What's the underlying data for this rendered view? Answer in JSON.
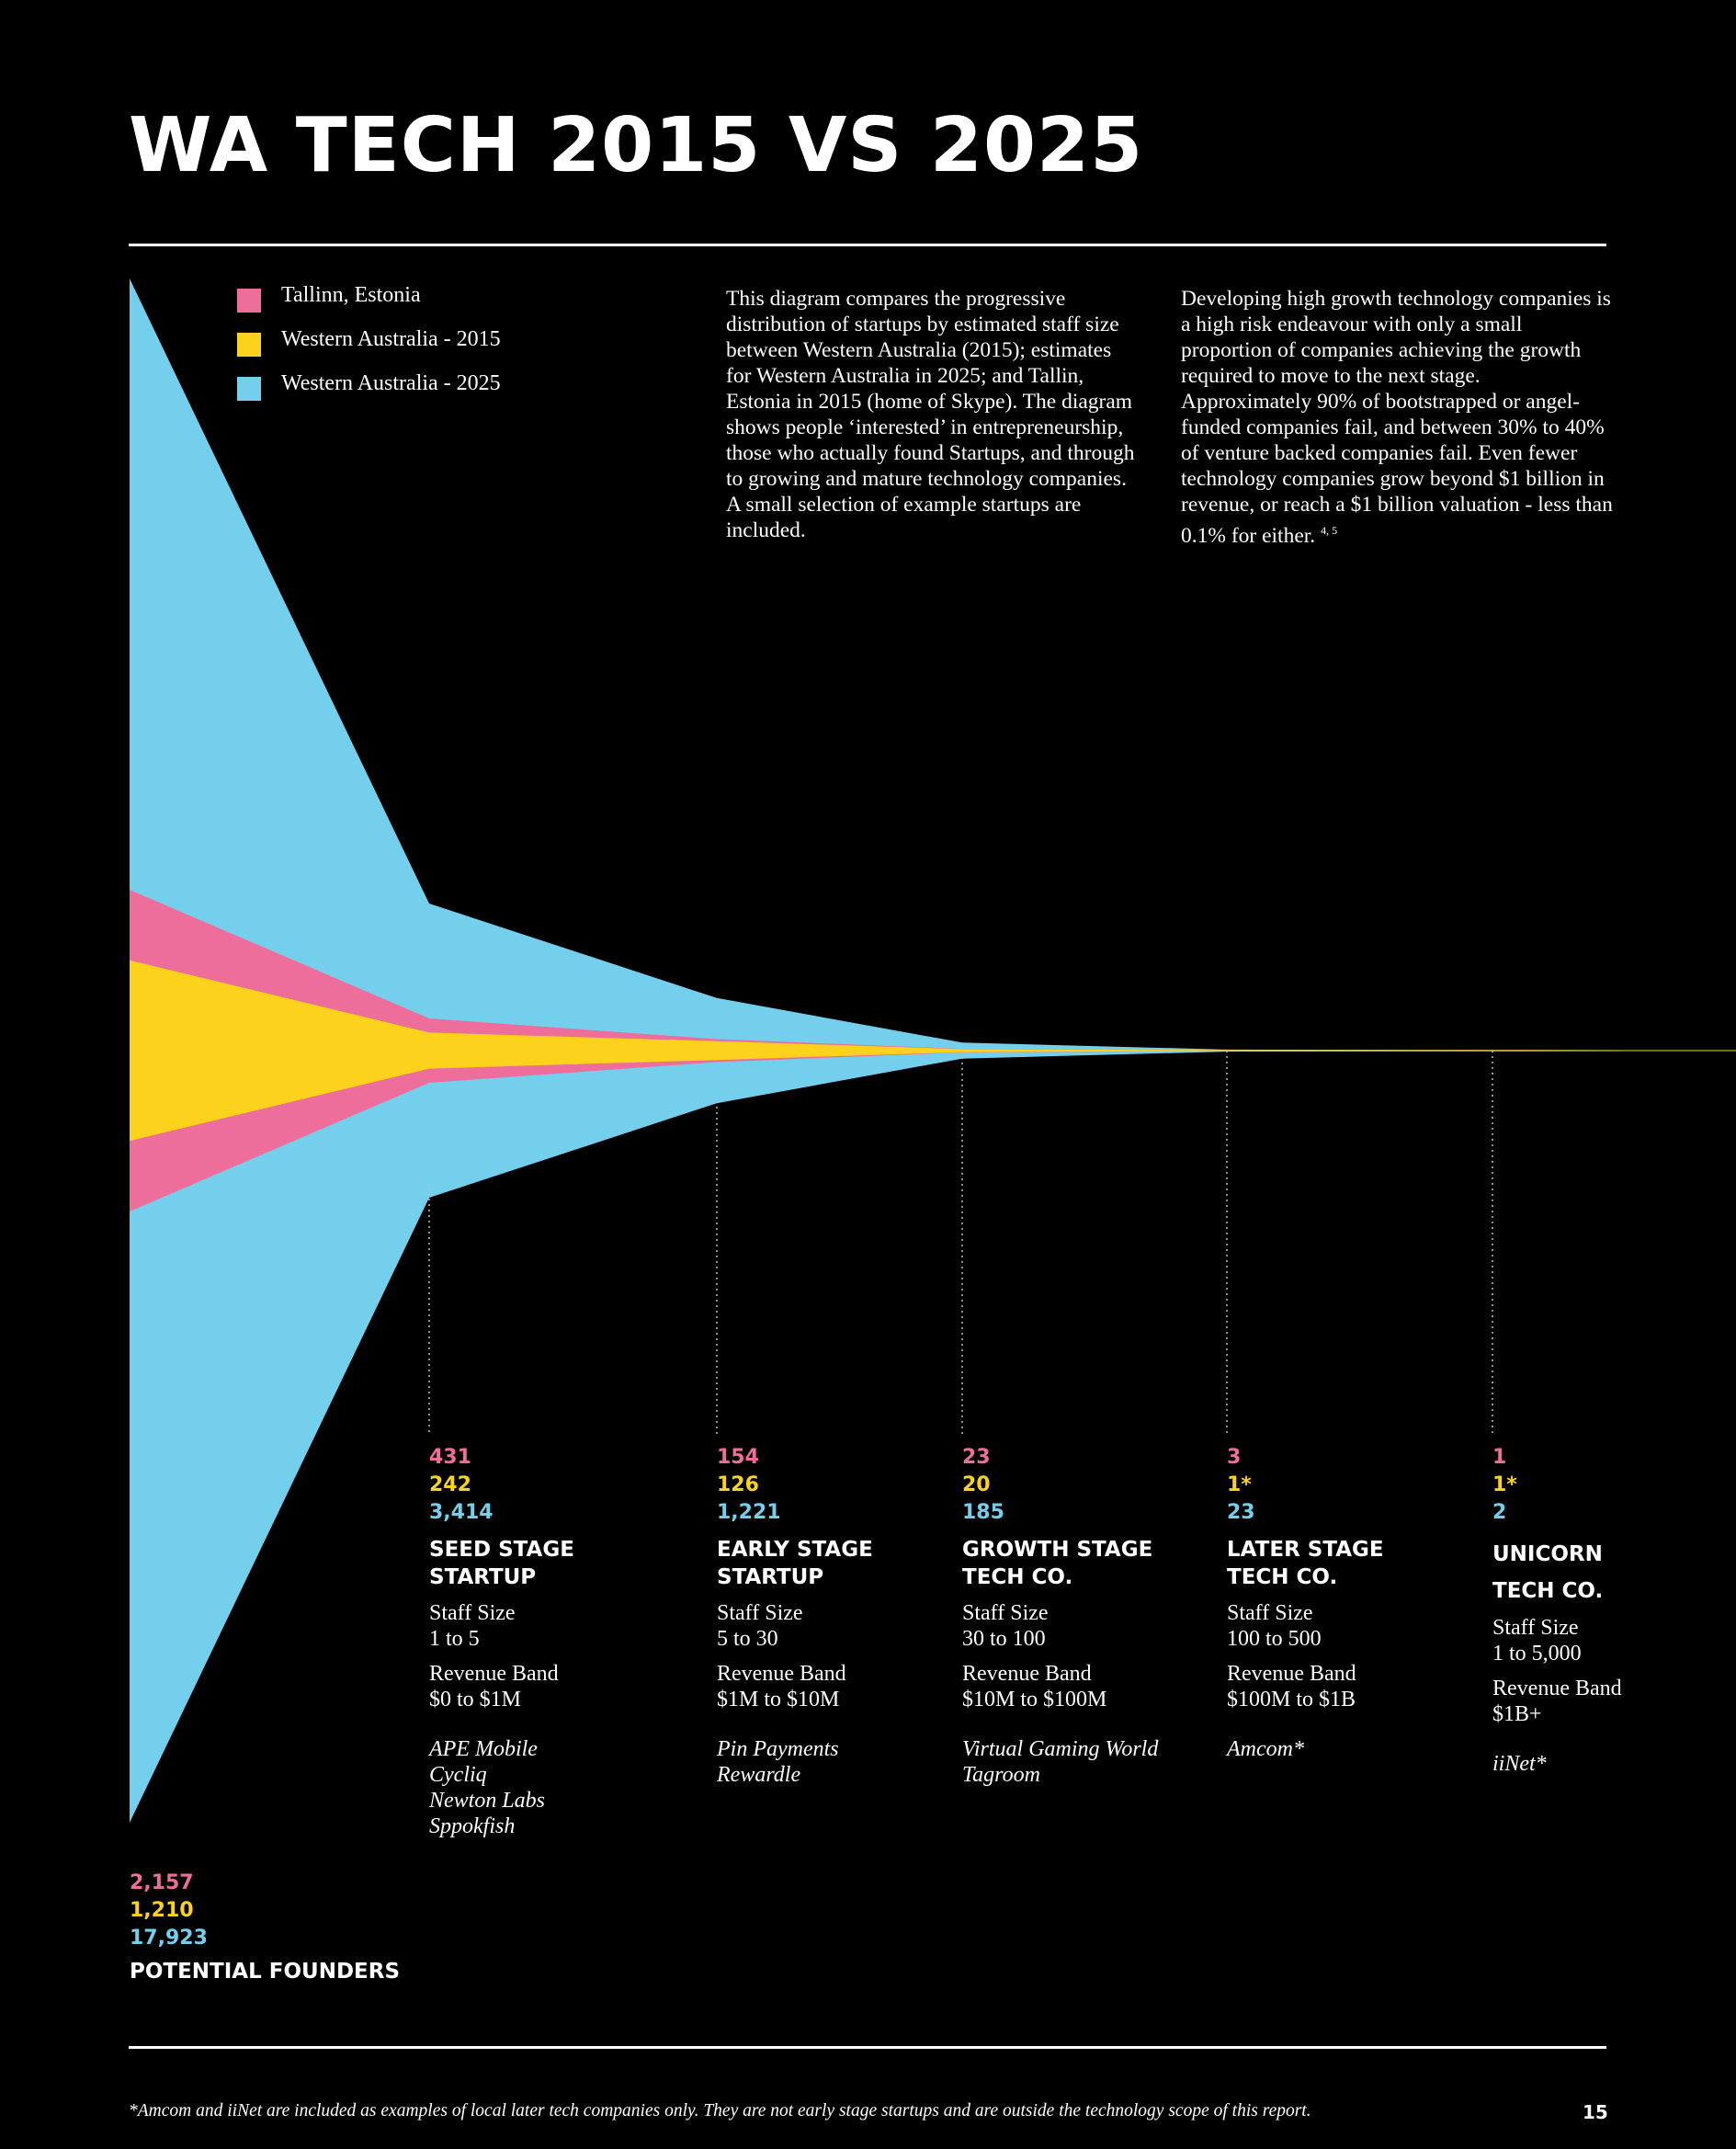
{
  "title": "WA TECH 2015 VS 2025",
  "legend": [
    {
      "label": "Tallinn, Estonia",
      "color": "#ee6e9b"
    },
    {
      "label": "Western Australia - 2015",
      "color": "#fdd21c"
    },
    {
      "label": "Western Australia - 2025",
      "color": "#74cfec"
    }
  ],
  "intro": {
    "col1": "This diagram compares the progressive distribution of startups by estimated staff size between Western Australia (2015); estimates for Western Australia in 2025; and Tallin, Estonia in 2015 (home of Skype). The diagram shows people ‘interested’ in entrepreneurship, those who actually found Startups, and through to growing and mature technology companies. A small selection of example startups are included.",
    "col2": "Developing high growth technology companies is a high risk endeavour with only a small proportion of companies achieving the growth required to move to the next stage. Approximately 90% of bootstrapped or angel-funded companies fail, and between 30% to 40% of venture backed companies fail. Even fewer technology companies grow beyond $1 billion in revenue, or reach a $1 billion valuation - less than 0.1% for either.",
    "col2_ref": "4, 5"
  },
  "stages": [
    {
      "title_lines": [
        "POTENTIAL FOUNDERS"
      ],
      "tallinn": "2,157",
      "wa2015": "1,210",
      "wa2025": "17,923"
    },
    {
      "title_lines": [
        "SEED STAGE",
        "STARTUP"
      ],
      "tallinn": "431",
      "wa2015": "242",
      "wa2025": "3,414",
      "staff_label": "Staff Size",
      "staff": "1 to 5",
      "revenue_label": "Revenue Band",
      "revenue": "$0 to $1M",
      "examples": [
        "APE Mobile",
        "Cycliq",
        "Newton Labs",
        "Sppokfish"
      ]
    },
    {
      "title_lines": [
        "EARLY STAGE",
        "STARTUP"
      ],
      "tallinn": "154",
      "wa2015": "126",
      "wa2025": "1,221",
      "staff_label": "Staff Size",
      "staff": "5 to 30",
      "revenue_label": "Revenue Band",
      "revenue": "$1M to $10M",
      "examples": [
        "Pin Payments",
        "Rewardle"
      ]
    },
    {
      "title_lines": [
        "GROWTH STAGE",
        "TECH CO."
      ],
      "tallinn": "23",
      "wa2015": "20",
      "wa2025": "185",
      "staff_label": "Staff Size",
      "staff": "30 to 100",
      "revenue_label": "Revenue Band",
      "revenue": "$10M to $100M",
      "examples": [
        "Virtual Gaming World",
        "Tagroom"
      ]
    },
    {
      "title_lines": [
        "LATER STAGE",
        "TECH CO."
      ],
      "tallinn": "3",
      "wa2015": "1*",
      "wa2025": "23",
      "staff_label": "Staff Size",
      "staff": "100 to 500",
      "revenue_label": "Revenue Band",
      "revenue": "$100M to $1B",
      "examples": [
        "Amcom*"
      ]
    },
    {
      "title_lines": [
        "UNICORN",
        "TECH CO."
      ],
      "tallinn": "1",
      "wa2015": "1*",
      "wa2025": "2",
      "staff_label": "Staff Size",
      "staff": "1 to 5,000",
      "revenue_label": "Revenue Band",
      "revenue": "$1B+",
      "examples": [
        "iiNet*"
      ]
    }
  ],
  "chart_data": {
    "type": "area",
    "categories": [
      "POTENTIAL FOUNDERS",
      "SEED STAGE STARTUP",
      "EARLY STAGE STARTUP",
      "GROWTH STAGE TECH CO.",
      "LATER STAGE TECH CO.",
      "UNICORN TECH CO."
    ],
    "series": [
      {
        "name": "Tallinn, Estonia",
        "values": [
          2157,
          431,
          154,
          23,
          3,
          1
        ],
        "color": "#ee6e9b"
      },
      {
        "name": "Western Australia - 2015",
        "values": [
          1210,
          242,
          126,
          20,
          1,
          1
        ],
        "color": "#fdd21c"
      },
      {
        "name": "Western Australia - 2025",
        "values": [
          17923,
          3414,
          1221,
          185,
          23,
          2
        ],
        "color": "#74cfec"
      }
    ]
  },
  "footnote": "*Amcom and iiNet are included as examples of local later tech companies only. They are not early stage startups and are outside the technology scope of this report.",
  "page_number": "15"
}
